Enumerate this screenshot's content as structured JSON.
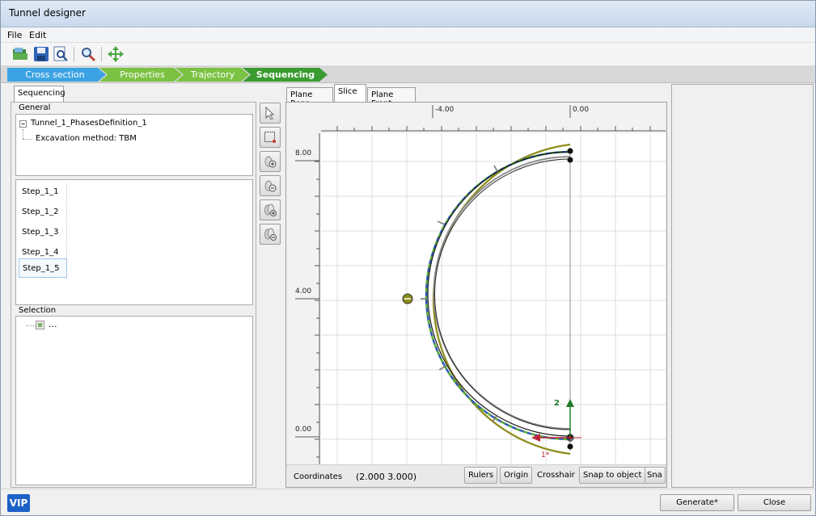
{
  "window": {
    "title": "Tunnel designer"
  },
  "menu": [
    "File",
    "Edit"
  ],
  "toolbar": {
    "icons": [
      "open-icon",
      "save-icon",
      "search-doc-icon",
      "zoom-icon",
      "pan-icon"
    ]
  },
  "wizard": {
    "steps": [
      "Cross section",
      "Properties",
      "Trajectory",
      "Sequencing"
    ],
    "active": "Sequencing"
  },
  "left": {
    "tab": "Sequencing",
    "general_label": "General",
    "tree_root": "Tunnel_1_PhasesDefinition_1",
    "tree_child": "Excavation method: TBM",
    "steps": [
      "Step_1_1",
      "Step_1_2",
      "Step_1_3",
      "Step_1_4",
      "Step_1_5"
    ],
    "selected_step": "Step_1_5",
    "selection_label": "Selection",
    "selection_item": "..."
  },
  "view": {
    "tabs": [
      "Plane Rear",
      "Slice",
      "Plane Front"
    ],
    "active_tab": "Slice",
    "ruler_top": [
      "-4.00",
      "0.00"
    ],
    "ruler_left": [
      "8.00",
      "4.00",
      "0.00"
    ],
    "axis_label_y": "2",
    "axis_label_x": "1*",
    "coordinates_label": "Coordinates",
    "coordinates_value": "(2.000 3.000)",
    "status_buttons": [
      "Rulers",
      "Origin"
    ],
    "status_text": "Crosshair",
    "status_buttons2": [
      "Snap to object",
      "Sna"
    ]
  },
  "footer": {
    "logo": "VIP",
    "generate": "Generate*",
    "close": "Close"
  }
}
